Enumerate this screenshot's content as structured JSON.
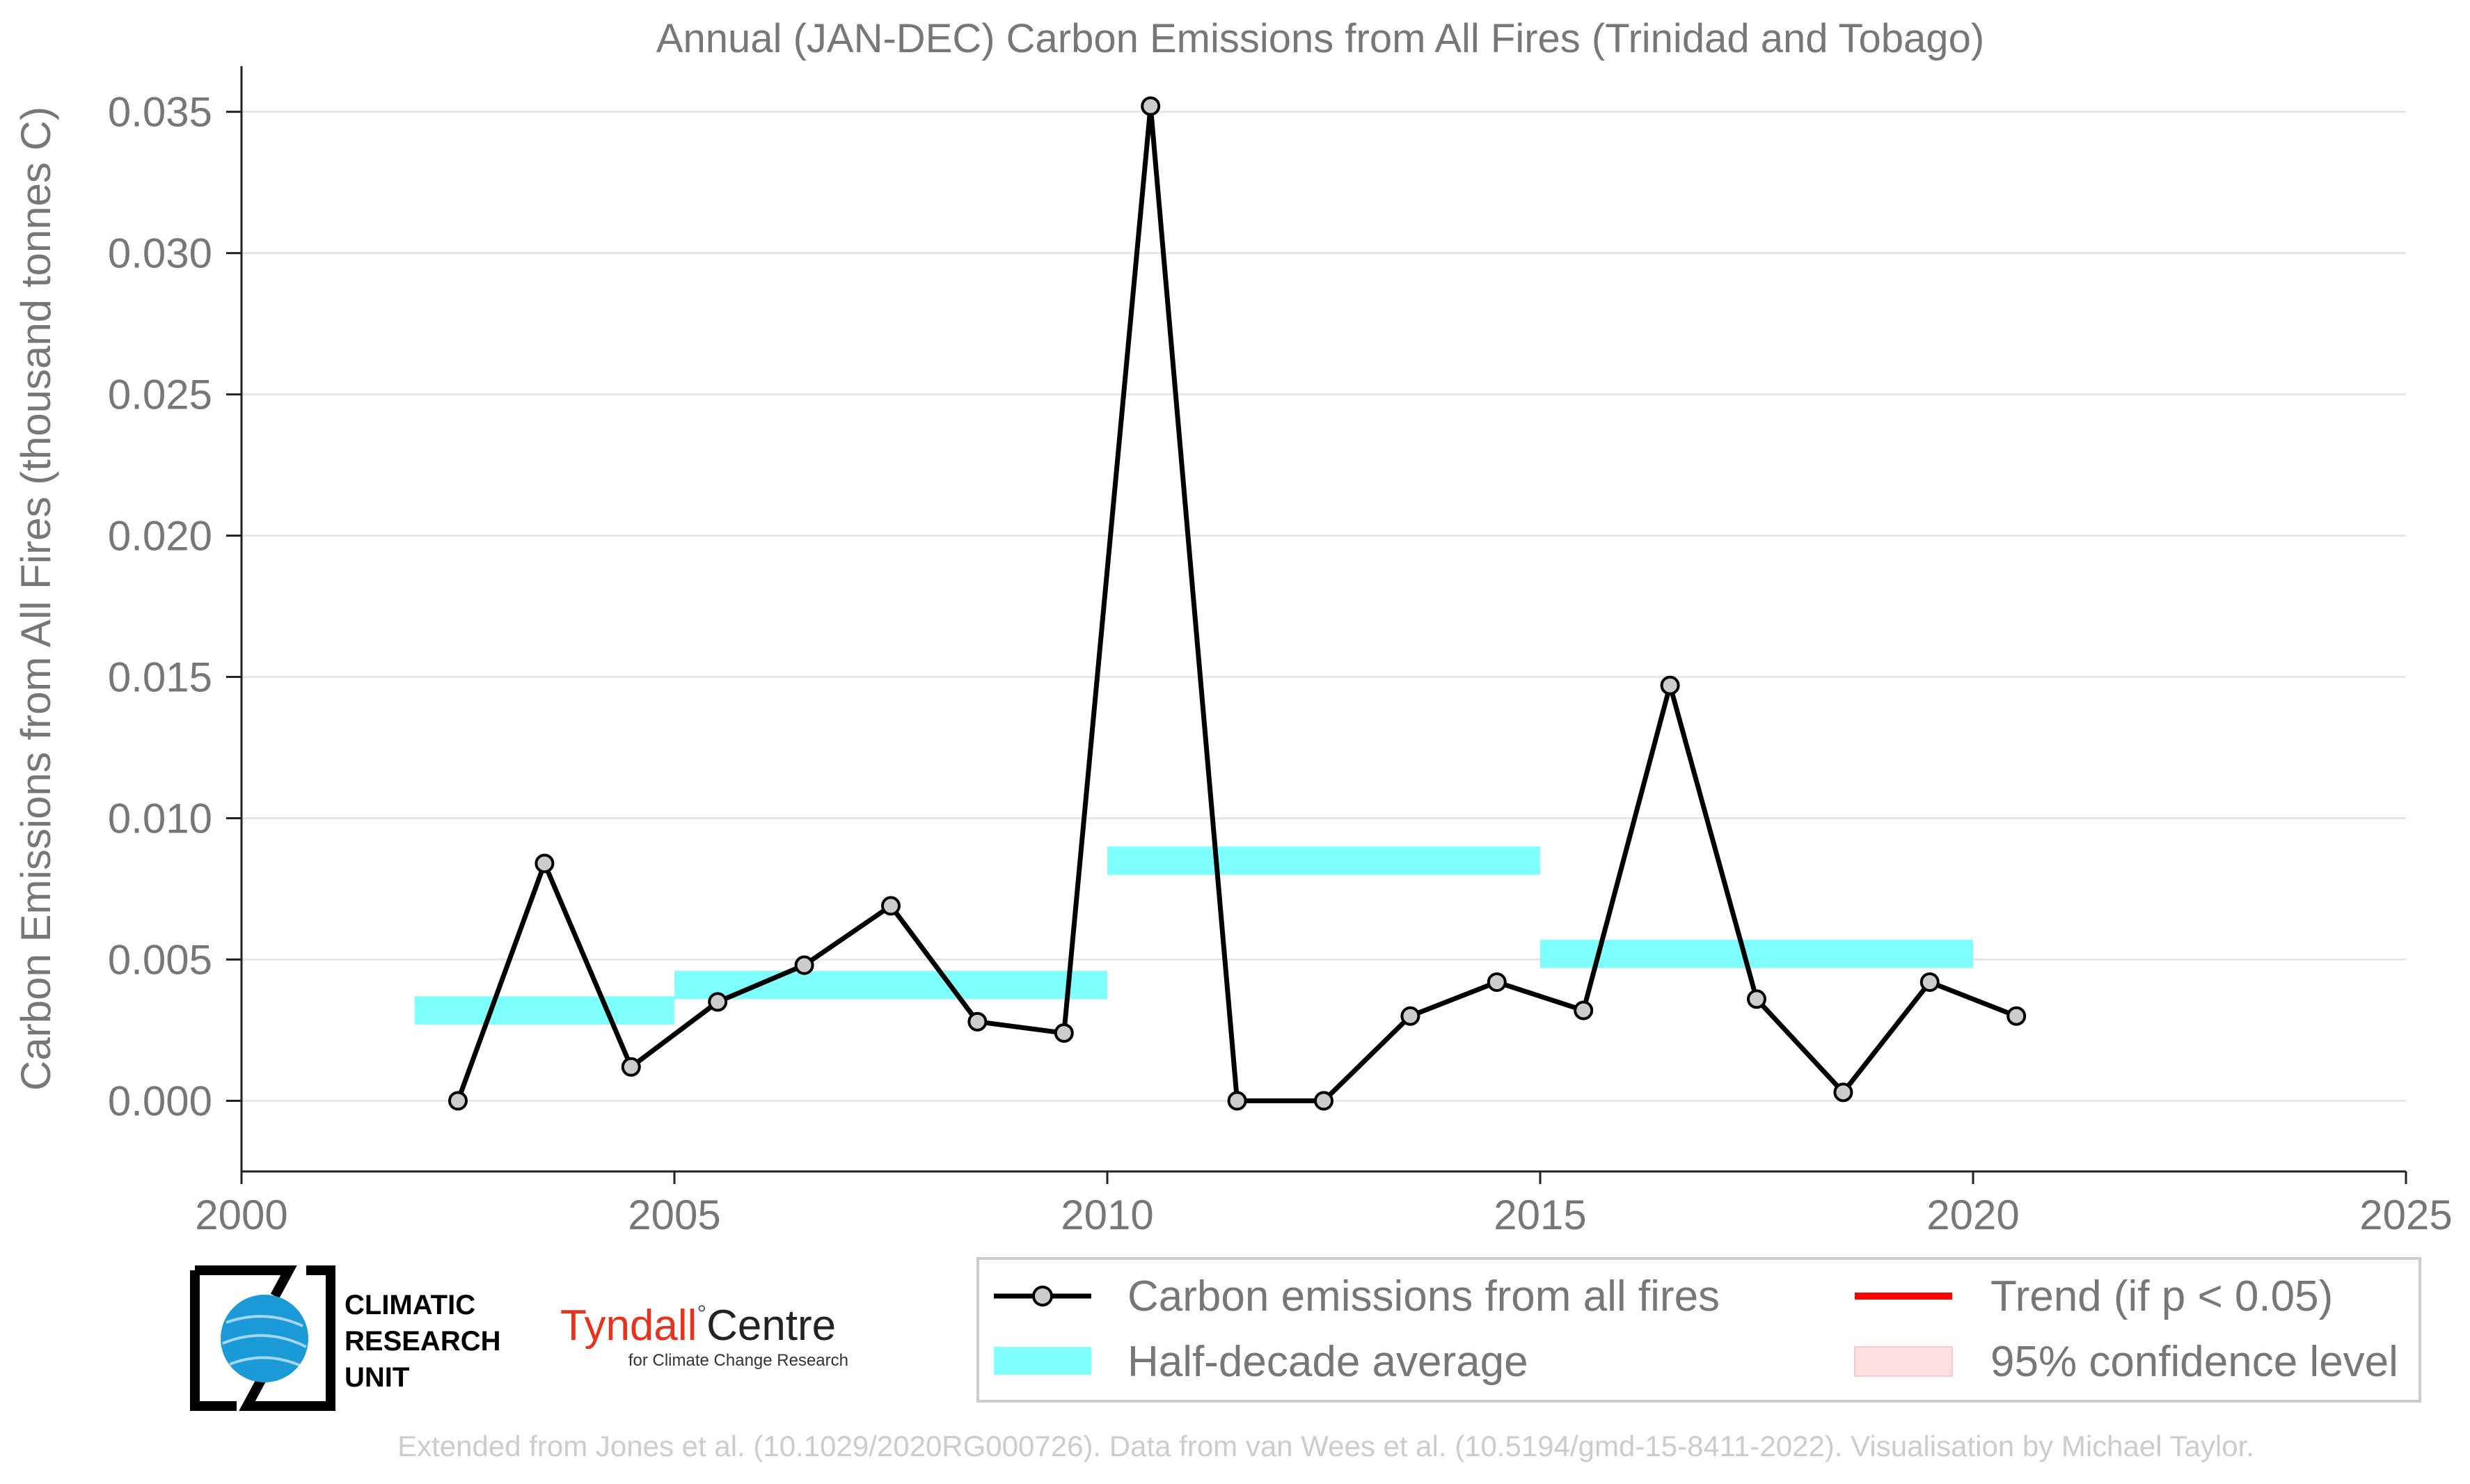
{
  "chart_data": {
    "type": "line",
    "title": "Annual (JAN-DEC) Carbon Emissions from All Fires (Trinidad and Tobago)",
    "xlabel": "",
    "ylabel": "Carbon Emissions from All Fires (thousand tonnes C)",
    "xlim": [
      2000,
      2025
    ],
    "ylim": [
      -0.0025,
      0.036
    ],
    "xticks": [
      2000,
      2005,
      2010,
      2015,
      2020,
      2025
    ],
    "yticks": [
      0.0,
      0.005,
      0.01,
      0.015,
      0.02,
      0.025,
      0.03,
      0.035
    ],
    "xtick_labels": [
      "2000",
      "2005",
      "2010",
      "2015",
      "2020",
      "2025"
    ],
    "ytick_labels": [
      "0.000",
      "0.005",
      "0.010",
      "0.015",
      "0.020",
      "0.025",
      "0.030",
      "0.035"
    ],
    "grid": "horizontal",
    "series": [
      {
        "name": "Carbon emissions from all fires",
        "color": "#000000",
        "marker_fill": "#cccccc",
        "x": [
          2002.5,
          2003.5,
          2004.5,
          2005.5,
          2006.5,
          2007.5,
          2008.5,
          2009.5,
          2010.5,
          2011.5,
          2012.5,
          2013.5,
          2014.5,
          2015.5,
          2016.5,
          2017.5,
          2018.5,
          2019.5,
          2020.5
        ],
        "y": [
          0.0,
          0.0084,
          0.0012,
          0.0035,
          0.0048,
          0.0069,
          0.0028,
          0.0024,
          0.0352,
          0.0,
          0.0,
          0.003,
          0.0042,
          0.0032,
          0.0147,
          0.0036,
          0.0003,
          0.0042,
          0.003
        ]
      }
    ],
    "half_decade_averages": {
      "name": "Half-decade average",
      "color": "#80ffff",
      "bands": [
        {
          "x0": 2002,
          "x1": 2005,
          "y0": 0.0027,
          "y1": 0.0037
        },
        {
          "x0": 2005,
          "x1": 2010,
          "y0": 0.0036,
          "y1": 0.0046
        },
        {
          "x0": 2010,
          "x1": 2015,
          "y0": 0.008,
          "y1": 0.009
        },
        {
          "x0": 2015,
          "x1": 2020,
          "y0": 0.0047,
          "y1": 0.0057
        }
      ]
    },
    "legend": {
      "placement": "bottom-right",
      "entries": [
        {
          "label": "Carbon emissions from all fires",
          "kind": "line-marker",
          "color": "#000000"
        },
        {
          "label": "Trend (if p < 0.05)",
          "kind": "line",
          "color": "#ff0000"
        },
        {
          "label": "Half-decade average",
          "kind": "patch",
          "color": "#80ffff"
        },
        {
          "label": "95% confidence level",
          "kind": "patch",
          "color": "#ffe0e0"
        }
      ]
    }
  },
  "logos": {
    "cru_lines": [
      "CLIMATIC",
      "RESEARCH",
      "UNIT"
    ],
    "tyndall_main": "Tyndall",
    "tyndall_degree": "°",
    "tyndall_centre": "Centre",
    "tyndall_sub": "for Climate Change Research"
  },
  "footer": "Extended from Jones et al. (10.1029/2020RG000726). Data from van Wees et al. (10.5194/gmd-15-8411-2022). Visualisation by Michael Taylor."
}
